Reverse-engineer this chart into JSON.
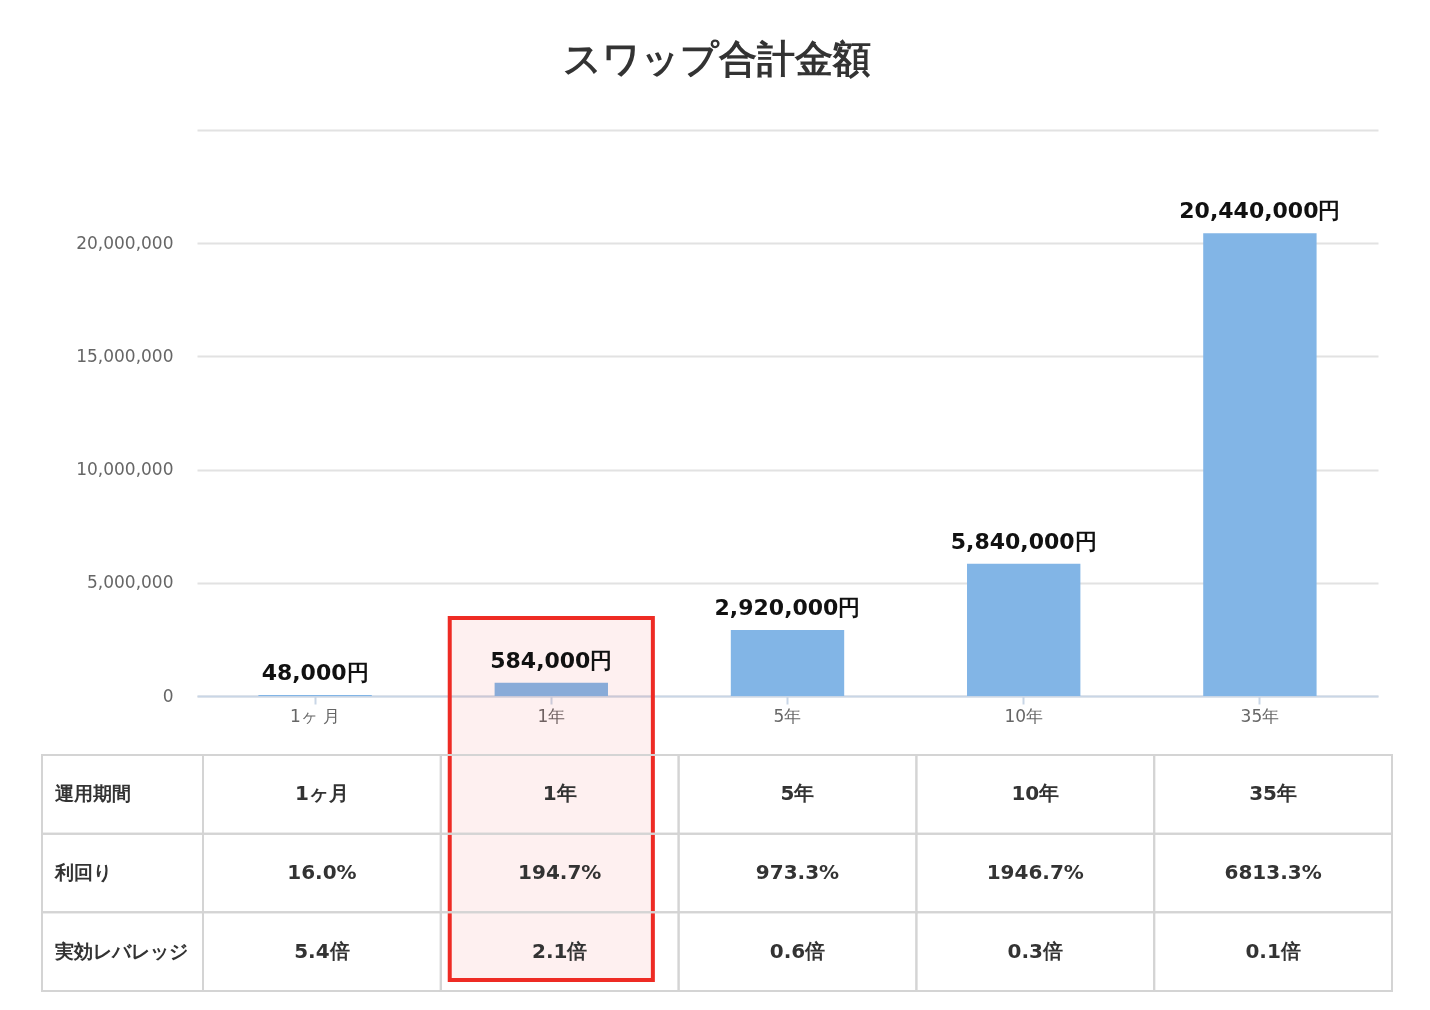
{
  "chart_data": [
    {
      "type": "bar",
      "title": "スワップ合計金額",
      "categories": [
        "1ヶ 月",
        "1年",
        "5年",
        "10年",
        "35年"
      ],
      "values": [
        48000,
        584000,
        2920000,
        5840000,
        20440000
      ],
      "color": "#82b5e6",
      "value_labels": [
        "48,000円",
        "584,000円",
        "2,920,000円",
        "5,840,000円",
        "20,440,000円"
      ],
      "ylim": [
        0,
        25000000
      ],
      "yticks": [
        {
          "value": 0,
          "label": "0"
        },
        {
          "value": 5000000,
          "label": "5,000,000"
        },
        {
          "value": 10000000,
          "label": "10,000,000"
        },
        {
          "value": 15000000,
          "label": "15,000,000"
        },
        {
          "value": 20000000,
          "label": "20,000,000"
        },
        {
          "value": 25000000,
          "label": null
        }
      ],
      "grid": "y",
      "bands": [
        {
          "axis": "x",
          "from": "1年",
          "to": "1年",
          "color": "#ee2b24"
        }
      ]
    },
    {
      "type": "heatmap",
      "xlabel": "運用期間",
      "categories": [
        "1ヶ月",
        "1年",
        "5年",
        "10年",
        "35年"
      ],
      "y_categories": [
        "利回り",
        "実効レバレッジ"
      ],
      "cells": [
        [
          16.0,
          194.7,
          973.3,
          1946.7,
          6813.3
        ],
        [
          5.4,
          2.1,
          0.6,
          0.3,
          0.1
        ]
      ],
      "cell_labels": [
        [
          "16.0%",
          "194.7%",
          "973.3%",
          "1946.7%",
          "6813.3%"
        ],
        [
          "5.4倍",
          "2.1倍",
          "0.6倍",
          "0.3倍",
          "0.1倍"
        ]
      ]
    }
  ]
}
